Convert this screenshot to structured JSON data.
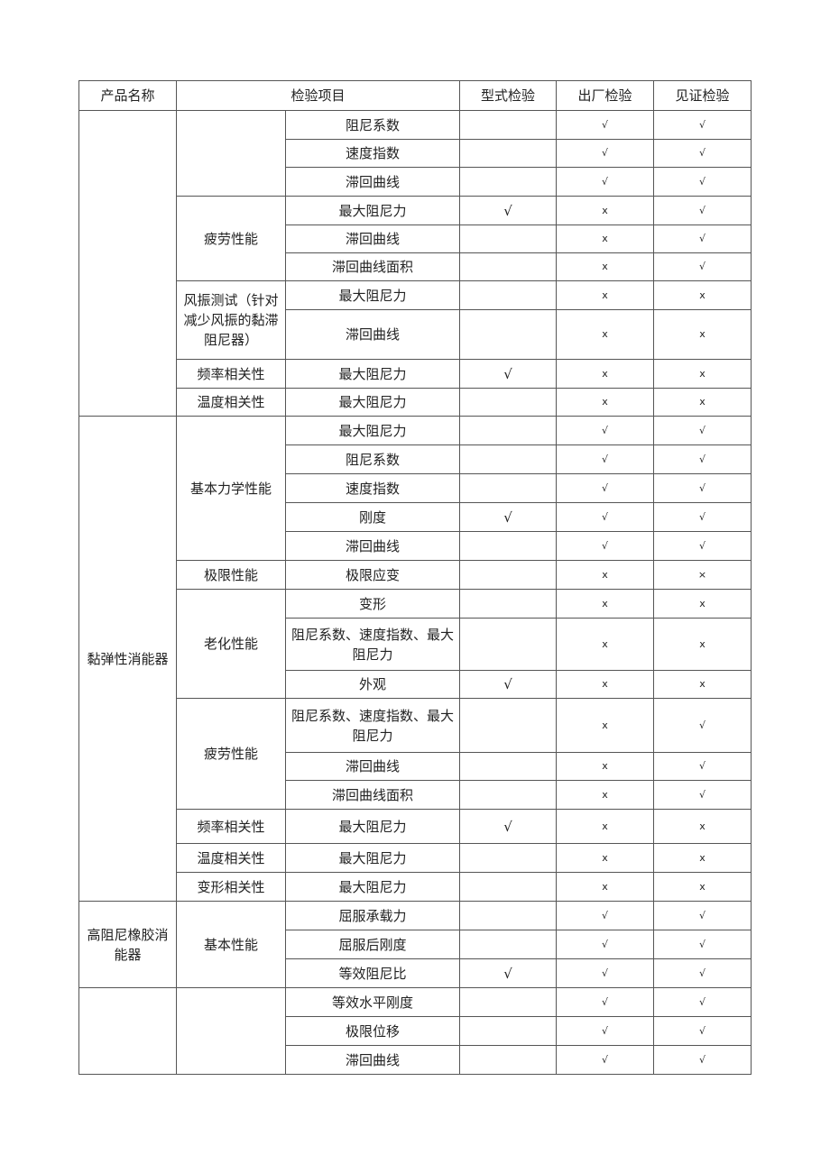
{
  "header": {
    "product": "产品名称",
    "item": "检验项目",
    "type_test": "型式检验",
    "factory_test": "出厂检验",
    "witness_test": "见证检验"
  },
  "products": [
    {
      "name": "",
      "groups": [
        {
          "name": "",
          "items": [
            {
              "name": "阻尼系数",
              "type": "",
              "factory": "√",
              "witness": "√"
            },
            {
              "name": "速度指数",
              "type": "",
              "factory": "√",
              "witness": "√"
            },
            {
              "name": "滞回曲线",
              "type": "",
              "factory": "√",
              "witness": "√"
            }
          ]
        },
        {
          "name": "疲劳性能",
          "items": [
            {
              "name": "最大阻尼力",
              "type": "√",
              "factory": "x",
              "witness": "√"
            },
            {
              "name": "滞回曲线",
              "type": "",
              "factory": "x",
              "witness": "√"
            },
            {
              "name": "滞回曲线面积",
              "type": "",
              "factory": "x",
              "witness": "√"
            }
          ]
        },
        {
          "name": "风振测试（针对减少风振的黏滞阻尼器）",
          "items": [
            {
              "name": "最大阻尼力",
              "type": "",
              "factory": "x",
              "witness": "x"
            },
            {
              "name": "滞回曲线",
              "type": "",
              "factory": "x",
              "witness": "x"
            }
          ]
        },
        {
          "name": "频率相关性",
          "items": [
            {
              "name": "最大阻尼力",
              "type": "√",
              "factory": "x",
              "witness": "x"
            }
          ]
        },
        {
          "name": "温度相关性",
          "items": [
            {
              "name": "最大阻尼力",
              "type": "",
              "factory": "x",
              "witness": "x"
            }
          ]
        }
      ]
    },
    {
      "name": "黏弹性消能器",
      "groups": [
        {
          "name": "基本力学性能",
          "items": [
            {
              "name": "最大阻尼力",
              "type": "",
              "factory": "√",
              "witness": "√"
            },
            {
              "name": "阻尼系数",
              "type": "",
              "factory": "√",
              "witness": "√"
            },
            {
              "name": "速度指数",
              "type": "",
              "factory": "√",
              "witness": "√"
            },
            {
              "name": "刚度",
              "type": "√",
              "factory": "√",
              "witness": "√"
            },
            {
              "name": "滞回曲线",
              "type": "",
              "factory": "√",
              "witness": "√"
            }
          ]
        },
        {
          "name": "极限性能",
          "items": [
            {
              "name": "极限应变",
              "type": "",
              "factory": "x",
              "witness": "×"
            }
          ]
        },
        {
          "name": "老化性能",
          "items": [
            {
              "name": "变形",
              "type": "",
              "factory": "x",
              "witness": "x"
            },
            {
              "name": "阻尼系数、速度指数、最大阻尼力",
              "type": "",
              "factory": "x",
              "witness": "x"
            },
            {
              "name": "外观",
              "type": "√",
              "factory": "x",
              "witness": "x"
            }
          ]
        },
        {
          "name": "疲劳性能",
          "items": [
            {
              "name": "阻尼系数、速度指数、最大阻尼力",
              "type": "",
              "factory": "x",
              "witness": "√"
            },
            {
              "name": "滞回曲线",
              "type": "",
              "factory": "x",
              "witness": "√"
            },
            {
              "name": "滞回曲线面积",
              "type": "",
              "factory": "x",
              "witness": "√"
            }
          ]
        },
        {
          "name": "频率相关性",
          "items": [
            {
              "name": "最大阻尼力",
              "type": "√",
              "factory": "x",
              "witness": "x"
            }
          ]
        },
        {
          "name": "温度相关性",
          "items": [
            {
              "name": "最大阻尼力",
              "type": "",
              "factory": "x",
              "witness": "x"
            }
          ]
        },
        {
          "name": "变形相关性",
          "items": [
            {
              "name": "最大阻尼力",
              "type": "",
              "factory": "x",
              "witness": "x"
            }
          ]
        }
      ]
    },
    {
      "name": "高阻尼橡胶消能器",
      "groups": [
        {
          "name": "基本性能",
          "items": [
            {
              "name": "屈服承载力",
              "type": "",
              "factory": "√",
              "witness": "√"
            },
            {
              "name": "屈服后刚度",
              "type": "",
              "factory": "√",
              "witness": "√"
            },
            {
              "name": "等效阻尼比",
              "type": "√",
              "factory": "√",
              "witness": "√"
            }
          ]
        }
      ]
    },
    {
      "name": "",
      "groups": [
        {
          "name": "",
          "items": [
            {
              "name": "等效水平刚度",
              "type": "",
              "factory": "√",
              "witness": "√"
            },
            {
              "name": "极限位移",
              "type": "",
              "factory": "√",
              "witness": "√"
            },
            {
              "name": "滞回曲线",
              "type": "",
              "factory": "√",
              "witness": "√"
            }
          ]
        }
      ]
    }
  ]
}
